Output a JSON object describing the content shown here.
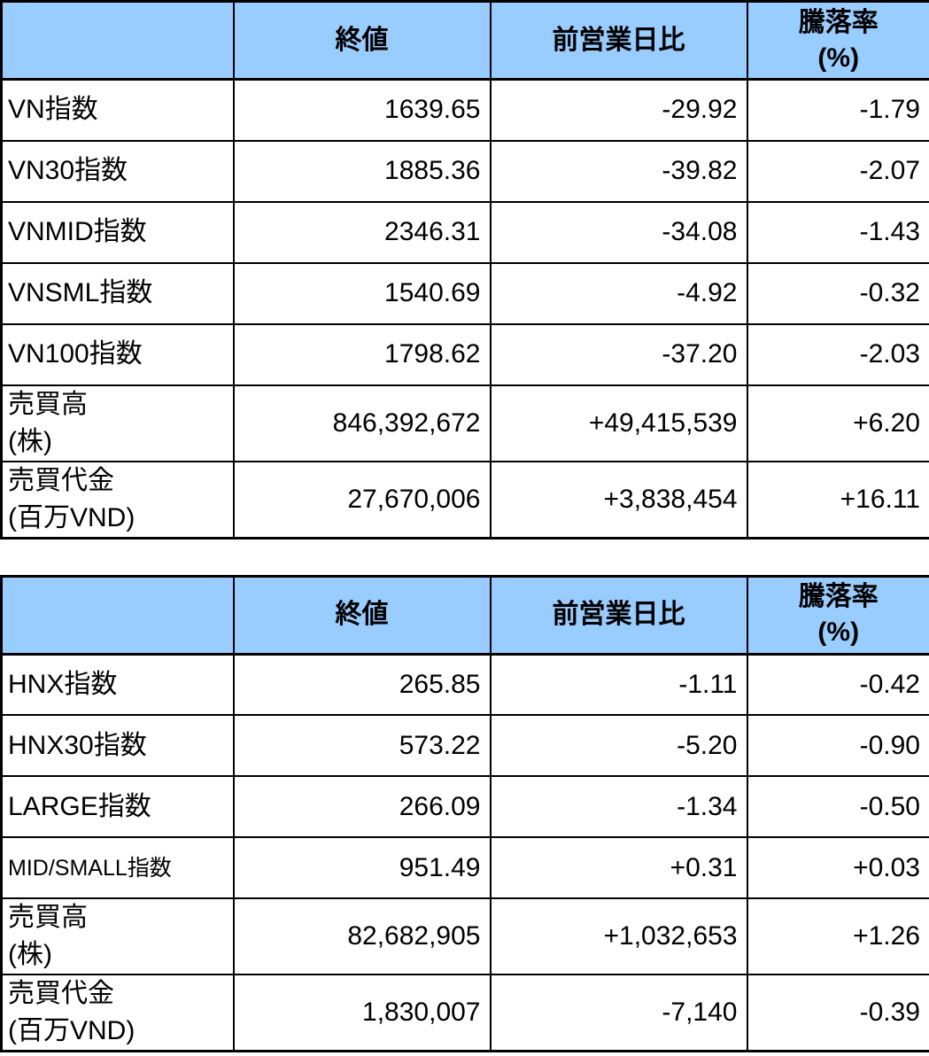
{
  "colors": {
    "header_bg": "#99CCFF",
    "border": "#000000",
    "row_bg": "#FFFFFF"
  },
  "tables": [
    {
      "id": "vn",
      "headers": {
        "corner": "",
        "close": "終値",
        "change": "前営業日比",
        "pct_line1": "騰落率",
        "pct_line2": "(%)"
      },
      "rows": [
        {
          "label": "VN指数",
          "close": "1639.65",
          "change": "-29.92",
          "pct": "-1.79"
        },
        {
          "label": "VN30指数",
          "close": "1885.36",
          "change": "-39.82",
          "pct": "-2.07"
        },
        {
          "label": "VNMID指数",
          "close": "2346.31",
          "change": "-34.08",
          "pct": "-1.43"
        },
        {
          "label": "VNSML指数",
          "close": "1540.69",
          "change": "-4.92",
          "pct": "-0.32"
        },
        {
          "label": "VN100指数",
          "close": "1798.62",
          "change": "-37.20",
          "pct": "-2.03"
        },
        {
          "label": "売買高",
          "label2": "(株)",
          "tall": true,
          "close": "846,392,672",
          "change": "+49,415,539",
          "pct": "+6.20"
        },
        {
          "label": "売買代金",
          "label2": "(百万VND)",
          "tall": true,
          "close": "27,670,006",
          "change": "+3,838,454",
          "pct": "+16.11"
        }
      ]
    },
    {
      "id": "hnx",
      "headers": {
        "corner": "",
        "close": "終値",
        "change": "前営業日比",
        "pct_line1": "騰落率",
        "pct_line2": "(%)"
      },
      "rows": [
        {
          "label": "HNX指数",
          "close": "265.85",
          "change": "-1.11",
          "pct": "-0.42"
        },
        {
          "label": "HNX30指数",
          "close": "573.22",
          "change": "-5.20",
          "pct": "-0.90"
        },
        {
          "label": "LARGE指数",
          "close": "266.09",
          "change": "-1.34",
          "pct": "-0.50"
        },
        {
          "label": "MID/SMALL指数",
          "small": true,
          "close": "951.49",
          "change": "+0.31",
          "pct": "+0.03"
        },
        {
          "label": "売買高",
          "label2": "(株)",
          "tall": true,
          "close": "82,682,905",
          "change": "+1,032,653",
          "pct": "+1.26"
        },
        {
          "label": "売買代金",
          "label2": "(百万VND)",
          "tall": true,
          "close": "1,830,007",
          "change": "-7,140",
          "pct": "-0.39"
        }
      ]
    }
  ]
}
